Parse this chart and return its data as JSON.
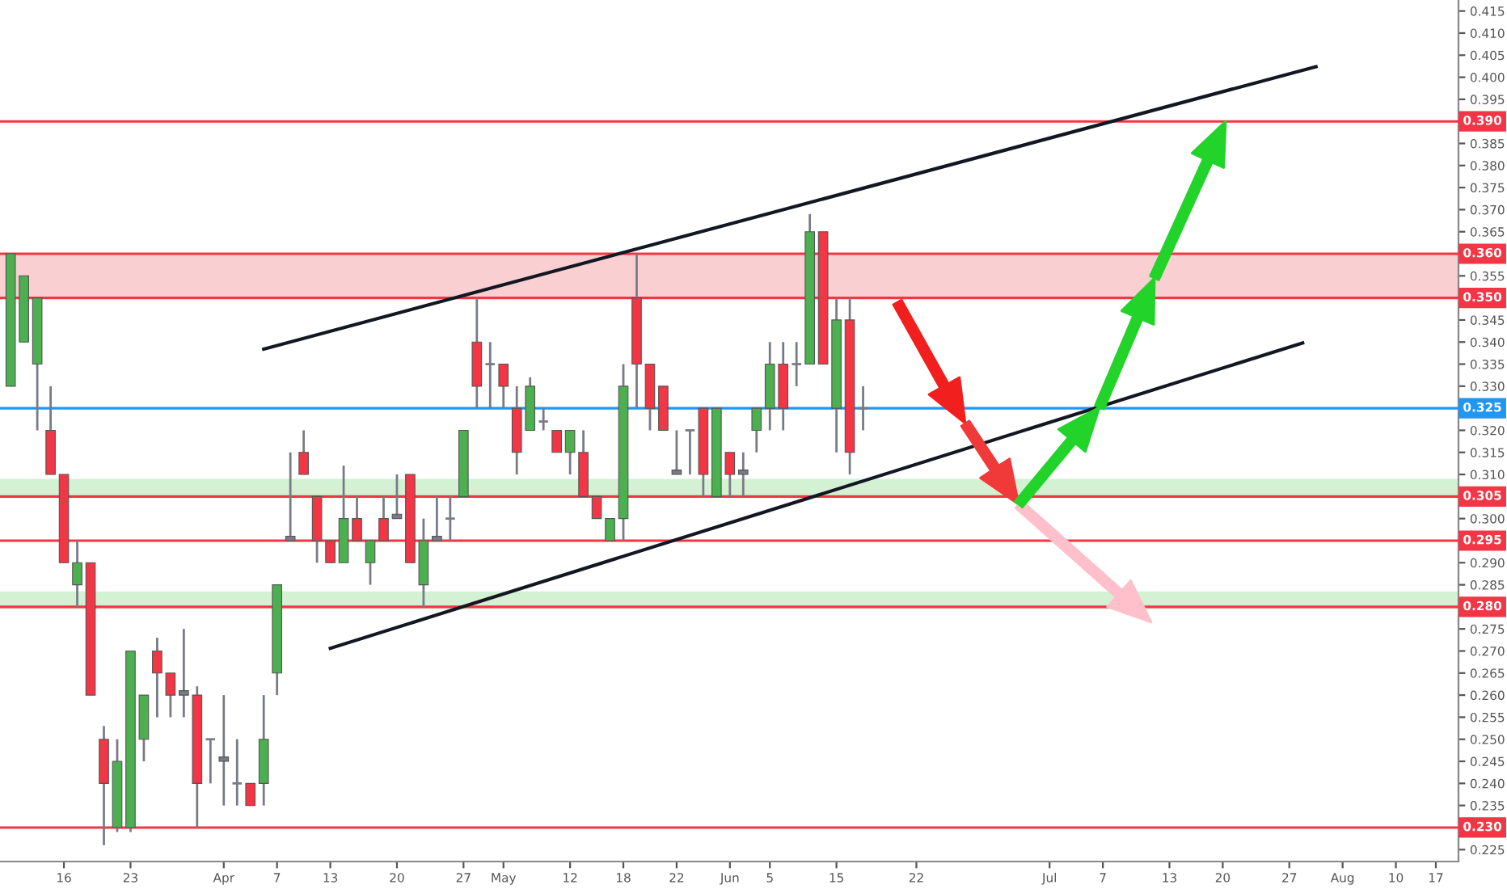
{
  "chart_data": {
    "type": "candlestick",
    "categories": [
      null,
      null,
      null,
      null,
      "16",
      null,
      null,
      null,
      null,
      "23",
      null,
      null,
      null,
      null,
      null,
      null,
      "Apr",
      null,
      null,
      null,
      "7",
      null,
      null,
      null,
      "13",
      null,
      null,
      null,
      null,
      "20",
      null,
      null,
      null,
      null,
      "27",
      null,
      null,
      "May",
      null,
      null,
      null,
      null,
      "12",
      null,
      null,
      null,
      "18",
      null,
      null,
      null,
      "22",
      null,
      null,
      null,
      "Jun",
      null,
      null,
      "5",
      null,
      null,
      null,
      null,
      "15",
      null,
      null,
      null,
      null,
      null,
      "22",
      null,
      null,
      null,
      null,
      null,
      null,
      null,
      null,
      null,
      "Jul",
      null,
      null,
      null,
      "7",
      null,
      null,
      null,
      null,
      "13",
      null,
      null,
      null,
      "20",
      null,
      null,
      null,
      null,
      "27",
      null,
      null,
      null,
      "Aug",
      null,
      null,
      null,
      "10",
      null,
      null,
      "17",
      null
    ],
    "ohlc": [
      [
        0.33,
        0.36,
        0.33,
        0.36
      ],
      [
        0.34,
        0.355,
        0.34,
        0.355
      ],
      [
        0.335,
        0.35,
        0.32,
        0.35
      ],
      [
        0.32,
        0.33,
        0.31,
        0.31
      ],
      [
        0.31,
        0.31,
        0.29,
        0.29
      ],
      [
        0.285,
        0.295,
        0.28,
        0.29
      ],
      [
        0.29,
        0.29,
        0.26,
        0.26
      ],
      [
        0.25,
        0.253,
        0.226,
        0.24
      ],
      [
        0.23,
        0.25,
        0.229,
        0.245
      ],
      [
        0.23,
        0.27,
        0.229,
        0.27
      ],
      [
        0.25,
        0.26,
        0.245,
        0.26
      ],
      [
        0.27,
        0.273,
        0.255,
        0.265
      ],
      [
        0.265,
        0.265,
        0.255,
        0.26
      ],
      [
        0.261,
        0.275,
        0.255,
        0.26
      ],
      [
        0.26,
        0.262,
        0.23,
        0.24
      ],
      [
        0.25,
        0.25,
        0.24,
        0.25
      ],
      [
        0.246,
        0.26,
        0.235,
        0.245
      ],
      [
        0.24,
        0.25,
        0.235,
        0.24
      ],
      [
        0.24,
        0.24,
        0.235,
        0.235
      ],
      [
        0.24,
        0.26,
        0.235,
        0.25
      ],
      [
        0.265,
        0.285,
        0.26,
        0.285
      ],
      [
        0.296,
        0.315,
        0.295,
        0.295
      ],
      [
        0.315,
        0.32,
        0.31,
        0.31
      ],
      [
        0.305,
        0.305,
        0.29,
        0.295
      ],
      [
        0.295,
        0.295,
        0.29,
        0.29
      ],
      [
        0.29,
        0.312,
        0.29,
        0.3
      ],
      [
        0.3,
        0.305,
        0.295,
        0.295
      ],
      [
        0.29,
        0.295,
        0.285,
        0.295
      ],
      [
        0.3,
        0.305,
        0.295,
        0.295
      ],
      [
        0.301,
        0.31,
        0.3,
        0.3
      ],
      [
        0.31,
        0.31,
        0.29,
        0.29
      ],
      [
        0.285,
        0.3,
        0.28,
        0.295
      ],
      [
        0.296,
        0.305,
        0.295,
        0.295
      ],
      [
        0.3,
        0.305,
        0.295,
        0.3
      ],
      [
        0.305,
        0.32,
        0.305,
        0.32
      ],
      [
        0.34,
        0.35,
        0.325,
        0.33
      ],
      [
        0.335,
        0.34,
        0.325,
        0.335
      ],
      [
        0.335,
        0.335,
        0.325,
        0.33
      ],
      [
        0.325,
        0.33,
        0.31,
        0.315
      ],
      [
        0.32,
        0.332,
        0.32,
        0.33
      ],
      [
        0.322,
        0.325,
        0.32,
        0.322
      ],
      [
        0.32,
        0.32,
        0.315,
        0.315
      ],
      [
        0.315,
        0.32,
        0.31,
        0.32
      ],
      [
        0.315,
        0.32,
        0.305,
        0.305
      ],
      [
        0.305,
        0.305,
        0.3,
        0.3
      ],
      [
        0.295,
        0.3,
        0.295,
        0.3
      ],
      [
        0.3,
        0.335,
        0.295,
        0.33
      ],
      [
        0.35,
        0.36,
        0.325,
        0.335
      ],
      [
        0.335,
        0.335,
        0.32,
        0.325
      ],
      [
        0.33,
        0.33,
        0.32,
        0.32
      ],
      [
        0.311,
        0.32,
        0.31,
        0.31
      ],
      [
        0.32,
        0.32,
        0.31,
        0.32
      ],
      [
        0.325,
        0.325,
        0.305,
        0.31
      ],
      [
        0.305,
        0.325,
        0.305,
        0.325
      ],
      [
        0.315,
        0.315,
        0.305,
        0.31
      ],
      [
        0.311,
        0.315,
        0.305,
        0.31
      ],
      [
        0.32,
        0.325,
        0.315,
        0.325
      ],
      [
        0.325,
        0.34,
        0.32,
        0.335
      ],
      [
        0.335,
        0.34,
        0.32,
        0.325
      ],
      [
        0.335,
        0.34,
        0.33,
        0.335
      ],
      [
        0.335,
        0.369,
        0.335,
        0.365
      ],
      [
        0.365,
        0.365,
        0.335,
        0.335
      ],
      [
        0.325,
        0.35,
        0.315,
        0.345
      ],
      [
        0.345,
        0.35,
        0.31,
        0.315
      ],
      [
        0.325,
        0.33,
        0.32,
        0.325
      ],
      null,
      null,
      null,
      null,
      null,
      null,
      null,
      null,
      null,
      null,
      null,
      null,
      null,
      null,
      null,
      null,
      null,
      null,
      null,
      null,
      null,
      null,
      null,
      null,
      null,
      null,
      null,
      null,
      null,
      null,
      null,
      null,
      null,
      null,
      null,
      null,
      null,
      null,
      null,
      null,
      null,
      null,
      null,
      null
    ],
    "colors": [
      "#4caf50",
      "#4caf50",
      "#4caf50",
      "#f23645",
      "#f23645",
      "#4caf50",
      "#f23645",
      "#f23645",
      "#4caf50",
      "#4caf50",
      "#4caf50",
      "#f23645",
      "#f23645",
      "#787b86",
      "#f23645",
      "#787b86",
      "#787b86",
      "#787b86",
      "#f23645",
      "#4caf50",
      "#4caf50",
      "#787b86",
      "#f23645",
      "#f23645",
      "#f23645",
      "#4caf50",
      "#f23645",
      "#4caf50",
      "#f23645",
      "#787b86",
      "#f23645",
      "#4caf50",
      "#787b86",
      "#787b86",
      "#4caf50",
      "#f23645",
      "#787b86",
      "#f23645",
      "#f23645",
      "#4caf50",
      "#787b86",
      "#f23645",
      "#4caf50",
      "#f23645",
      "#f23645",
      "#4caf50",
      "#4caf50",
      "#f23645",
      "#f23645",
      "#f23645",
      "#787b86",
      "#787b86",
      "#f23645",
      "#4caf50",
      "#f23645",
      "#787b86",
      "#4caf50",
      "#4caf50",
      "#f23645",
      "#787b86",
      "#4caf50",
      "#f23645",
      "#4caf50",
      "#f23645",
      "#787b86",
      null,
      null,
      null,
      null,
      null,
      null,
      null,
      null,
      null,
      null,
      null,
      null,
      null,
      null,
      null,
      null,
      null,
      null,
      null,
      null,
      null,
      null,
      null,
      null,
      null,
      null,
      null,
      null,
      null,
      null,
      null,
      null,
      null,
      null,
      null,
      null,
      null,
      null,
      null,
      null,
      null,
      null,
      null,
      null
    ],
    "series": [
      {
        "type": "line",
        "color": "#131722",
        "values": [
          null,
          null,
          null,
          null,
          null,
          null,
          null,
          null,
          null,
          null,
          null,
          null,
          null,
          null,
          null,
          null,
          null,
          null,
          null,
          0.3384,
          null,
          null,
          null,
          null,
          null,
          null,
          null,
          null,
          null,
          null,
          null,
          null,
          null,
          null,
          null,
          null,
          null,
          null,
          null,
          null,
          null,
          null,
          null,
          null,
          null,
          null,
          null,
          null,
          null,
          null,
          null,
          null,
          null,
          null,
          null,
          null,
          null,
          null,
          null,
          null,
          null,
          null,
          null,
          null,
          null,
          null,
          null,
          null,
          null,
          null,
          null,
          null,
          null,
          null,
          null,
          null,
          null,
          null,
          null,
          null,
          null,
          null,
          null,
          null,
          null,
          null,
          null,
          null,
          null,
          null,
          null,
          null,
          null,
          null,
          null,
          null,
          null,
          null,
          0.4024,
          null,
          null,
          null,
          null,
          null,
          null,
          null,
          null,
          null,
          null
        ]
      },
      {
        "type": "line",
        "color": "#131722",
        "values": [
          null,
          null,
          null,
          null,
          null,
          null,
          null,
          null,
          null,
          null,
          null,
          null,
          null,
          null,
          null,
          null,
          null,
          null,
          null,
          null,
          null,
          null,
          null,
          null,
          0.2706,
          null,
          null,
          null,
          null,
          null,
          null,
          null,
          null,
          null,
          null,
          null,
          null,
          null,
          null,
          null,
          null,
          null,
          null,
          null,
          null,
          null,
          null,
          null,
          null,
          null,
          null,
          null,
          null,
          null,
          null,
          null,
          null,
          null,
          null,
          null,
          null,
          null,
          null,
          null,
          null,
          null,
          null,
          null,
          null,
          null,
          null,
          null,
          null,
          null,
          null,
          null,
          null,
          null,
          null,
          null,
          null,
          null,
          null,
          null,
          null,
          null,
          null,
          null,
          null,
          null,
          null,
          null,
          null,
          null,
          null,
          null,
          null,
          0.3398,
          null,
          null,
          null,
          null,
          null,
          null,
          null,
          null,
          null,
          null,
          null
        ]
      }
    ],
    "ylim": [
      0.2223,
      0.4175
    ],
    "yticks": [
      0.225,
      0.235,
      {
        "value": 0.24,
        "label": "0.240"
      },
      0.245,
      {
        "value": 0.25,
        "label": "0.250"
      },
      0.255,
      {
        "value": 0.26,
        "label": "0.260"
      },
      0.265,
      {
        "value": 0.27,
        "label": "0.270"
      },
      0.275,
      0.285,
      {
        "value": 0.29,
        "label": "0.290"
      },
      {
        "value": 0.3,
        "label": "0.300"
      },
      {
        "value": 0.31,
        "label": "0.310"
      },
      0.315,
      {
        "value": 0.32,
        "label": "0.320"
      },
      {
        "value": 0.33,
        "label": "0.330"
      },
      0.335,
      {
        "value": 0.34,
        "label": "0.340"
      },
      0.345,
      0.355,
      0.365,
      {
        "value": 0.37,
        "label": "0.370"
      },
      0.375,
      {
        "value": 0.38,
        "label": "0.380"
      },
      0.385,
      0.395,
      {
        "value": 0.4,
        "label": "0.400"
      },
      0.405,
      {
        "value": 0.41,
        "label": "0.410"
      },
      0.415
    ],
    "ref_lines": [
      {
        "axis": "y",
        "value": 0.39,
        "label": "0.390",
        "color": "#f23645"
      },
      {
        "axis": "y",
        "value": 0.36,
        "label": "0.360",
        "color": "#f23645"
      },
      {
        "axis": "y",
        "value": 0.35,
        "label": "0.350",
        "color": "#f23645"
      },
      {
        "axis": "y",
        "value": 0.325,
        "label": "0.325",
        "color": "#2196f3"
      },
      {
        "axis": "y",
        "value": 0.305,
        "label": "0.305",
        "color": "#f23645"
      },
      {
        "axis": "y",
        "value": 0.295,
        "label": "0.295",
        "color": "#f23645"
      },
      {
        "axis": "y",
        "value": 0.28,
        "label": "0.280",
        "color": "#f23645"
      },
      {
        "axis": "y",
        "value": 0.23,
        "label": "0.230",
        "color": "#f23645"
      }
    ],
    "bands": [
      {
        "axis": "y",
        "from": 0.35,
        "to": 0.36,
        "color": "#f9cfd2"
      },
      {
        "axis": "y",
        "from": 0.305,
        "to": 0.309,
        "color": "#d3f2d4"
      },
      {
        "axis": "y",
        "from": 0.2795,
        "to": 0.2835,
        "color": "#d3f2d4"
      }
    ]
  }
}
